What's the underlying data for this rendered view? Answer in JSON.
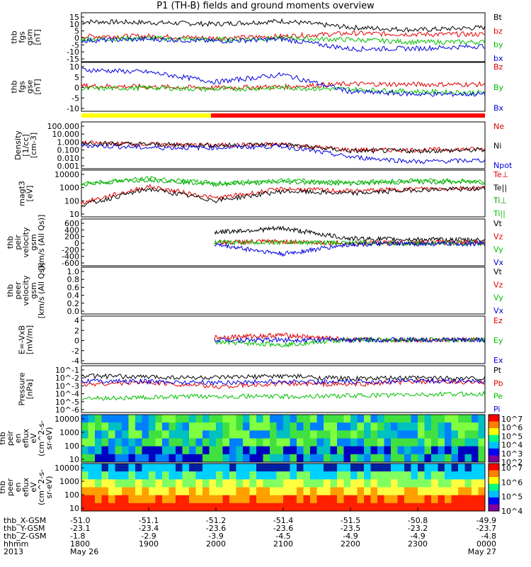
{
  "title": "P1 (TH-B) fields and ground moments overview",
  "panels": [
    {
      "id": "fgs_gsm",
      "ylabel": [
        "thb",
        "fgs",
        "gsm",
        "[nT]"
      ],
      "yticks": [
        "15",
        "10",
        "5",
        "0",
        "-5",
        "-10",
        "-15"
      ],
      "ylim": [
        -15,
        15
      ],
      "legend": [
        {
          "label": "Bt",
          "color": "#000000"
        },
        {
          "label": "bz",
          "color": "#e00000"
        },
        {
          "label": "by",
          "color": "#00c000"
        },
        {
          "label": "bx",
          "color": "#0000e0"
        }
      ]
    },
    {
      "id": "fgs_gse",
      "ylabel": [
        "thb",
        "fgs",
        "gse",
        "[nT]"
      ],
      "yticks": [
        "10",
        "5",
        "0",
        "-5",
        "-10"
      ],
      "ylim": [
        -15,
        15
      ],
      "legend": [
        {
          "label": "Bz",
          "color": "#e00000"
        },
        {
          "label": "By",
          "color": "#00c000"
        },
        {
          "label": "Bx",
          "color": "#0000e0"
        }
      ]
    },
    {
      "id": "density",
      "ylabel": [
        "Density",
        "[1/cc]",
        "[cm-3]"
      ],
      "yticks": [
        "100.000",
        "10.000",
        "1.000",
        "0.100",
        "0.010",
        "0.001"
      ],
      "ylim": [
        0.0005,
        200
      ],
      "log": true,
      "legend": [
        {
          "label": "Ne",
          "color": "#e00000"
        },
        {
          "label": "Ni",
          "color": "#000000"
        },
        {
          "label": "Npot",
          "color": "#0000e0"
        }
      ]
    },
    {
      "id": "temp",
      "ylabel": [
        "magt3",
        "[eV]"
      ],
      "yticks": [
        "10000",
        "1000",
        "100",
        "10"
      ],
      "ylim": [
        5,
        10000
      ],
      "log": true,
      "legend": [
        {
          "label": "Te⊥",
          "color": "#e00000"
        },
        {
          "label": "Te||",
          "color": "#000000"
        },
        {
          "label": "Ti⊥",
          "color": "#00a000"
        },
        {
          "label": "Ti||",
          "color": "#00c000"
        }
      ]
    },
    {
      "id": "peir_vel",
      "ylabel": [
        "thb",
        "peir",
        "velocity",
        "gsm",
        "[km/s (All Qs)]"
      ],
      "yticks": [
        "600",
        "400",
        "200",
        "0",
        "-200",
        "-400",
        "-600"
      ],
      "ylim": [
        -600,
        600
      ],
      "legend": [
        {
          "label": "Vt",
          "color": "#000000"
        },
        {
          "label": "Vz",
          "color": "#e00000"
        },
        {
          "label": "Vy",
          "color": "#00c000"
        },
        {
          "label": "Vx",
          "color": "#0000e0"
        }
      ]
    },
    {
      "id": "peer_vel",
      "ylabel": [
        "thb",
        "peer",
        "velocity",
        "gsm",
        "[km/s (All Qs)]"
      ],
      "yticks": [
        "1.0",
        "0.8",
        "0.6",
        "0.4",
        "0.2",
        "0.0"
      ],
      "ylim": [
        0,
        1
      ],
      "legend": [
        {
          "label": "Vt",
          "color": "#000000"
        },
        {
          "label": "Vz",
          "color": "#e00000"
        },
        {
          "label": "Vy",
          "color": "#00c000"
        },
        {
          "label": "Vx",
          "color": "#0000e0"
        }
      ]
    },
    {
      "id": "efield",
      "ylabel": [
        "E=-VxB",
        "[mV/m]"
      ],
      "yticks": [
        "4",
        "2",
        "0",
        "-2",
        "-4"
      ],
      "ylim": [
        -4,
        4
      ],
      "legend": [
        {
          "label": "Ez",
          "color": "#e00000"
        },
        {
          "label": "Ey",
          "color": "#00c000"
        },
        {
          "label": "Ex",
          "color": "#0000e0"
        }
      ]
    },
    {
      "id": "pressure",
      "ylabel": [
        "Pressure",
        "[nPa]"
      ],
      "yticks": [
        "10^-1",
        "10^-2",
        "10^-3",
        "10^-4",
        "10^-5",
        "10^-6"
      ],
      "ylim": [
        5e-07,
        0.2
      ],
      "log": true,
      "legend": [
        {
          "label": "Pt",
          "color": "#000000"
        },
        {
          "label": "Pb",
          "color": "#e00000"
        },
        {
          "label": "Pe",
          "color": "#00c000"
        },
        {
          "label": "Pi",
          "color": "#0000e0"
        }
      ]
    },
    {
      "id": "peir_spec",
      "ylabel": [
        "thb",
        "peir",
        "en",
        "eflux",
        "eV",
        "(cm^2-s-",
        "sr-eV)"
      ],
      "yticks": [
        "10000",
        "1000",
        "100",
        "10"
      ],
      "colorbar": [
        "10^7",
        "10^6",
        "10^5",
        "10^4",
        "10^3",
        "10^2"
      ]
    },
    {
      "id": "peer_spec",
      "ylabel": [
        "thb",
        "peer",
        "en",
        "eflux",
        "eV",
        "(cm^2-s-",
        "sr-eV)"
      ],
      "yticks": [
        "10000",
        "1000",
        "100",
        "10"
      ],
      "colorbar": [
        "10^7",
        "10^6",
        "10^5",
        "10^4"
      ]
    }
  ],
  "footer": {
    "labels": [
      "thb_X-GSM",
      "thb_Y-GSM",
      "thb_Z-GSM",
      "hhmm",
      "2013"
    ],
    "columns": [
      [
        "-51.0",
        "-23.1",
        "-1.8",
        "1800",
        "May 26"
      ],
      [
        "-51.1",
        "-23.4",
        "-2.9",
        "1900",
        ""
      ],
      [
        "-51.2",
        "-23.6",
        "-3.9",
        "2000",
        ""
      ],
      [
        "-51.4",
        "-23.6",
        "-4.5",
        "2100",
        ""
      ],
      [
        "-51.5",
        "-23.5",
        "-4.9",
        "2200",
        ""
      ],
      [
        "-50.8",
        "-23.2",
        "-4.9",
        "2300",
        ""
      ],
      [
        "-49.9",
        "-23.7",
        "-4.8",
        "0000",
        "May 27"
      ]
    ]
  },
  "chart_data": {
    "type": "line",
    "title": "P1 (TH-B) fields and ground moments overview",
    "x": [
      "1800",
      "1900",
      "2000",
      "2100",
      "2200",
      "2300",
      "0000"
    ],
    "xlabel": "hhmm",
    "series": [
      {
        "name": "Bt",
        "values": [
          10,
          9,
          8,
          10,
          7,
          5,
          6
        ]
      },
      {
        "name": "bz",
        "values": [
          1,
          1,
          0,
          1,
          3,
          2,
          2
        ]
      },
      {
        "name": "by",
        "values": [
          -1,
          0,
          -1,
          0,
          -1,
          -2,
          -3
        ]
      },
      {
        "name": "bx",
        "values": [
          -2,
          -1,
          -3,
          -1,
          -7,
          -7,
          -5
        ]
      }
    ],
    "ylim": [
      -15,
      15
    ]
  }
}
